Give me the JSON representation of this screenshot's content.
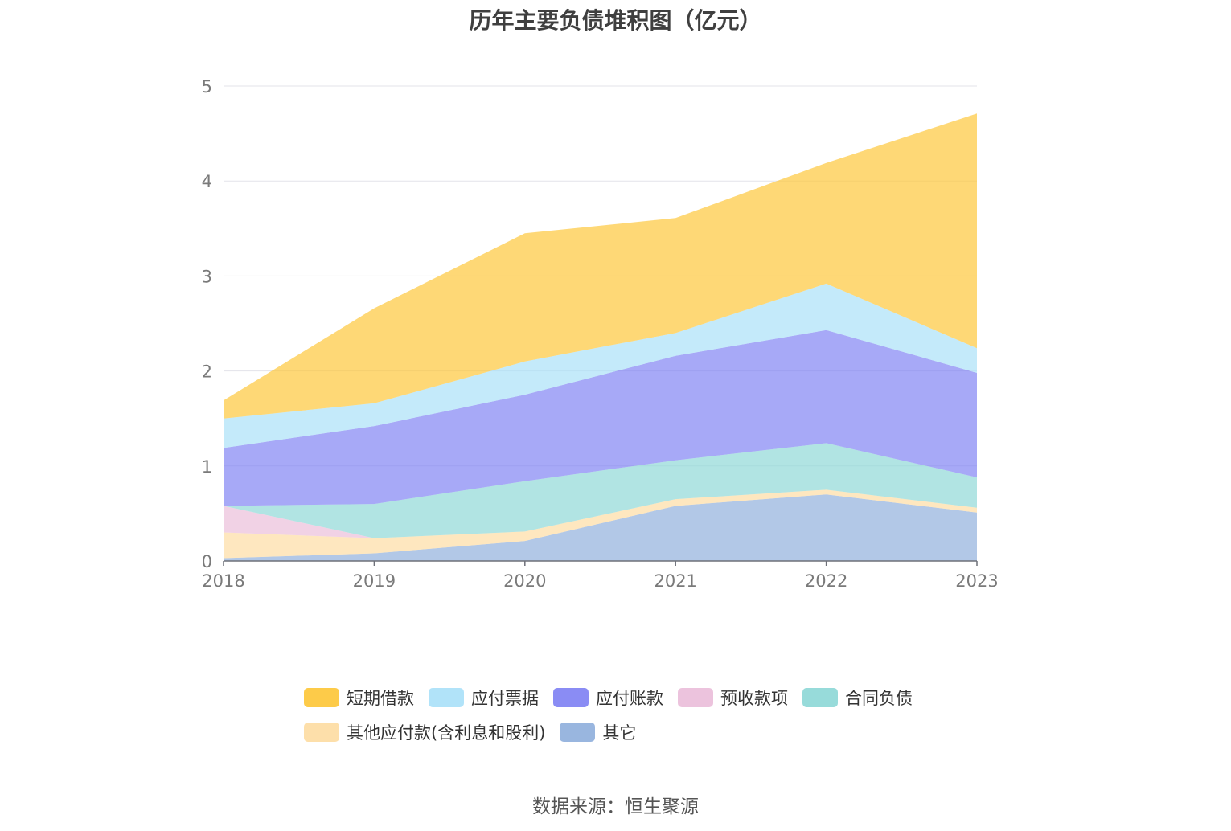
{
  "chart_data": {
    "type": "area",
    "stacked": true,
    "title": "历年主要负债堆积图（亿元）",
    "x": [
      "2018",
      "2019",
      "2020",
      "2021",
      "2022",
      "2023"
    ],
    "ylim": [
      0,
      5
    ],
    "yticks": [
      "0",
      "1",
      "2",
      "3",
      "4",
      "5"
    ],
    "grid": true,
    "legend_position": "bottom",
    "series": [
      {
        "name": "其它",
        "color": "#8eaedb",
        "values": [
          0.03,
          0.08,
          0.21,
          0.58,
          0.7,
          0.51
        ]
      },
      {
        "name": "其他应付款(含利息和股利)",
        "color": "#fddca1",
        "values": [
          0.27,
          0.16,
          0.1,
          0.07,
          0.05,
          0.05
        ]
      },
      {
        "name": "预收款项",
        "color": "#eabdd9",
        "values": [
          0.28,
          0.0,
          0.0,
          0.0,
          0.0,
          0.0
        ]
      },
      {
        "name": "合同负债",
        "color": "#8cd7d6",
        "values": [
          0.0,
          0.36,
          0.53,
          0.41,
          0.49,
          0.32
        ]
      },
      {
        "name": "应付账款",
        "color": "#7d80f3",
        "values": [
          0.61,
          0.82,
          0.91,
          1.1,
          1.19,
          1.1
        ]
      },
      {
        "name": "应付票据",
        "color": "#a8e0f8",
        "values": [
          0.31,
          0.24,
          0.35,
          0.24,
          0.49,
          0.26
        ]
      },
      {
        "name": "短期借款",
        "color": "#fdc535",
        "values": [
          0.19,
          1.0,
          1.35,
          1.21,
          1.27,
          2.47
        ]
      }
    ]
  },
  "legend": {
    "row1": [
      {
        "label": "短期借款",
        "color": "#fdc535"
      },
      {
        "label": "应付票据",
        "color": "#a8e0f8"
      },
      {
        "label": "应付账款",
        "color": "#7d80f3"
      },
      {
        "label": "预收款项",
        "color": "#eabdd9"
      },
      {
        "label": "合同负债",
        "color": "#8cd7d6"
      }
    ],
    "row2": [
      {
        "label": "其他应付款(含利息和股利)",
        "color": "#fddca1"
      },
      {
        "label": "其它",
        "color": "#8eaedb"
      }
    ]
  },
  "source": "数据来源：恒生聚源"
}
